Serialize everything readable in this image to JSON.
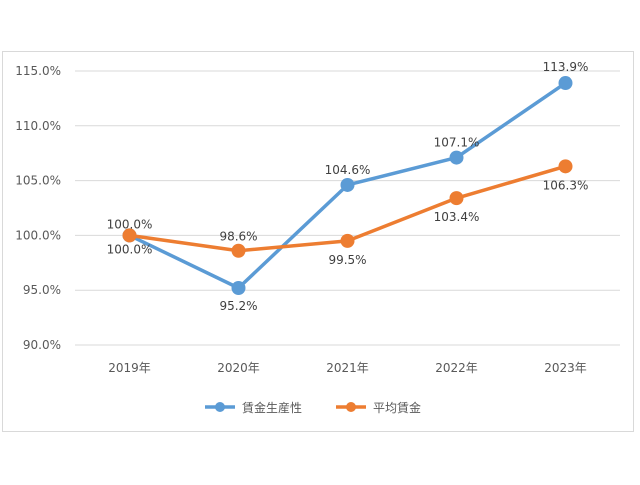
{
  "chart_data": {
    "type": "line",
    "title": "",
    "xlabel": "",
    "ylabel": "",
    "categories": [
      "2019年",
      "2020年",
      "2021年",
      "2022年",
      "2023年"
    ],
    "ylim": [
      90,
      115
    ],
    "yticks": [
      90,
      95,
      100,
      105,
      110,
      115
    ],
    "ytick_labels": [
      "90.0%",
      "95.0%",
      "100.0%",
      "105.0%",
      "110.0%",
      "115.0%"
    ],
    "grid": true,
    "legend_position": "bottom",
    "series": [
      {
        "name": "賃金生産性",
        "color": "#5b9bd5",
        "values": [
          100.0,
          95.2,
          104.6,
          107.1,
          113.9
        ],
        "labels": [
          "100.0%",
          "95.2%",
          "104.6%",
          "107.1%",
          "113.9%"
        ]
      },
      {
        "name": "平均賃金",
        "color": "#ed7d31",
        "values": [
          100.0,
          98.6,
          99.5,
          103.4,
          106.3
        ],
        "labels": [
          "100.0%",
          "98.6%",
          "99.5%",
          "103.4%",
          "106.3%"
        ]
      }
    ]
  }
}
